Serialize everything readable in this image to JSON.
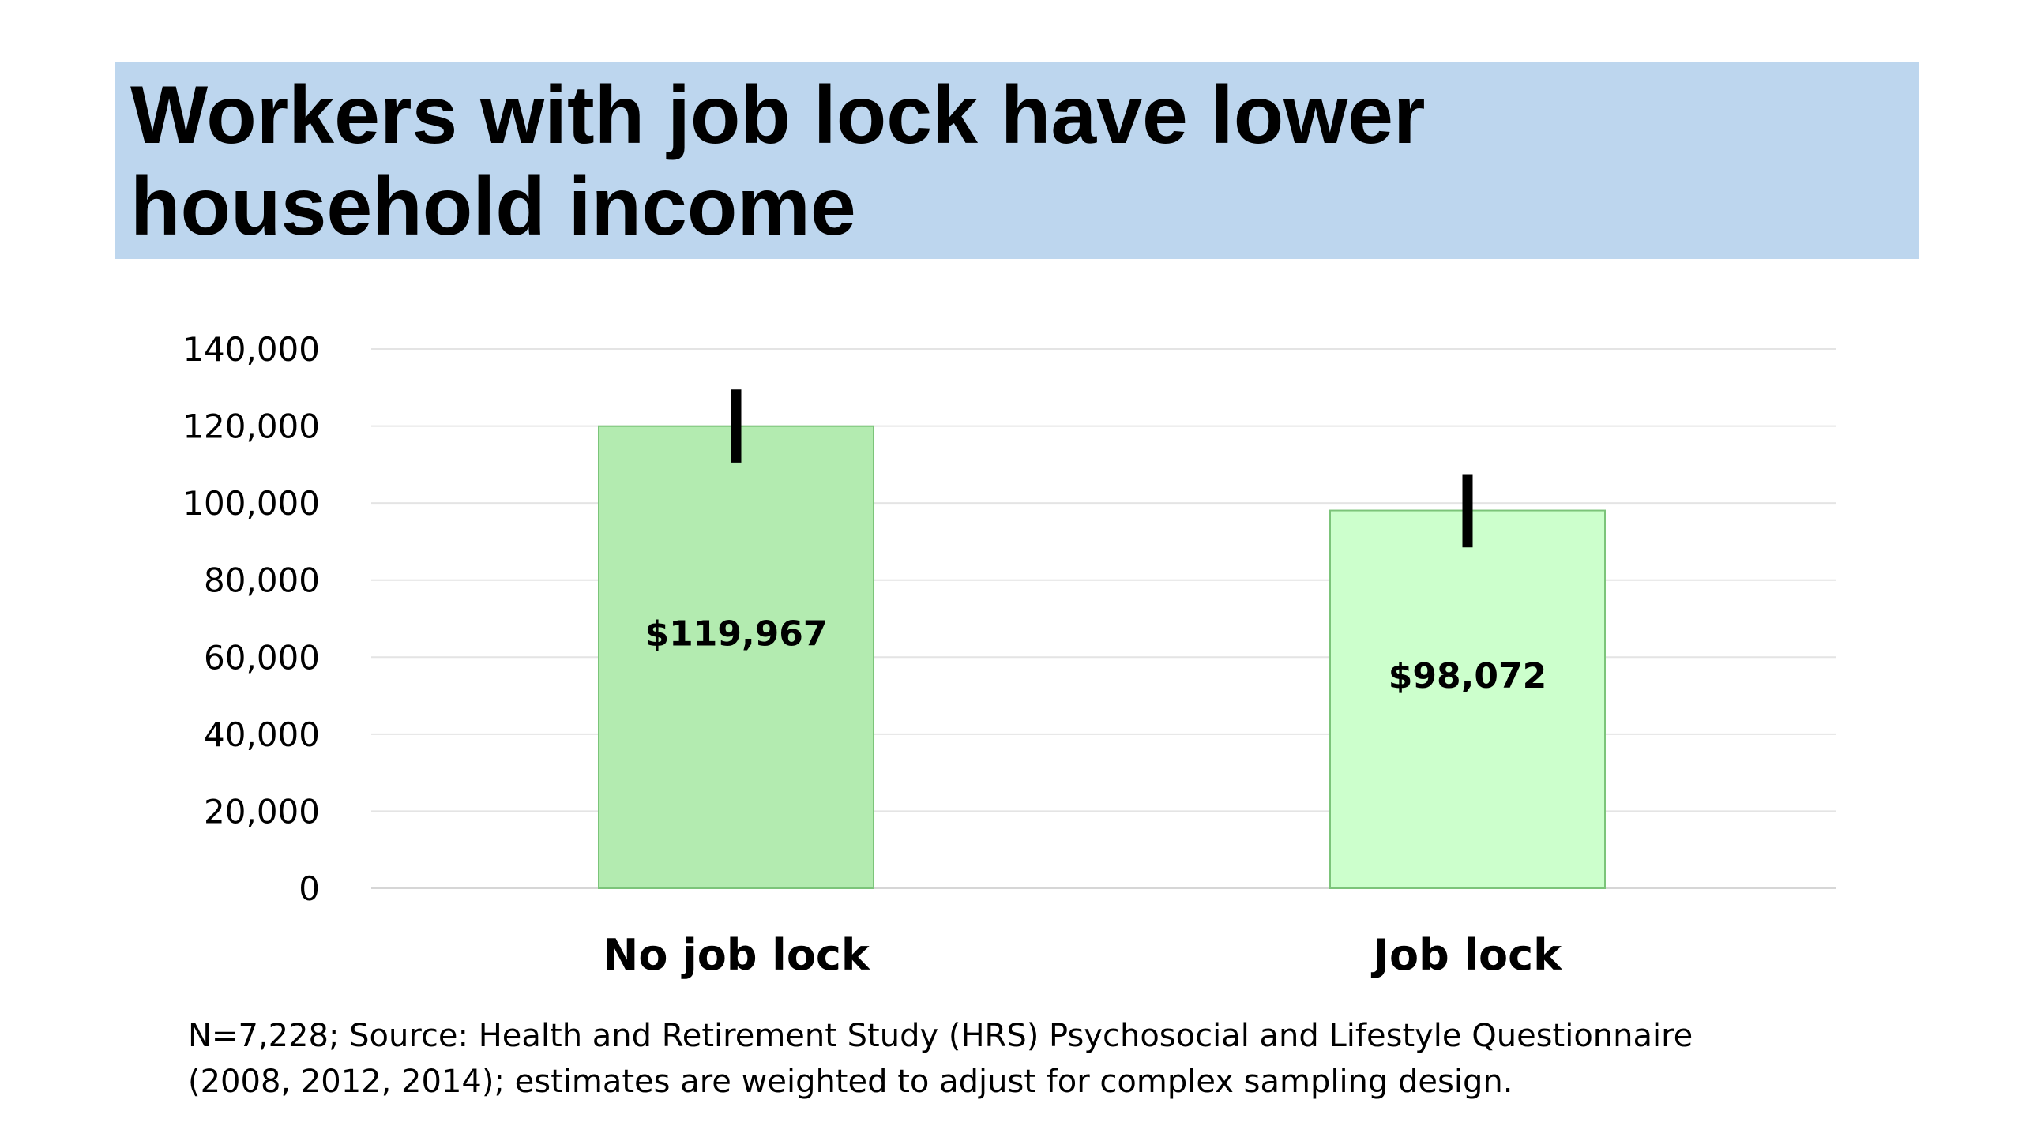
{
  "title": {
    "line1": "Workers with job lock have lower",
    "line2": "household income"
  },
  "chart_data": {
    "type": "bar",
    "categories": [
      "No job lock",
      "Job lock"
    ],
    "values": [
      119967,
      98072
    ],
    "data_labels": [
      "$119,967",
      "$98,072"
    ],
    "error_bars": [
      [
        110500,
        129500
      ],
      [
        88500,
        107500
      ]
    ],
    "ylim": [
      0,
      140000
    ],
    "yticks": [
      0,
      20000,
      40000,
      60000,
      80000,
      100000,
      120000,
      140000
    ],
    "ytick_labels": [
      "0",
      "20,000",
      "40,000",
      "60,000",
      "80,000",
      "100,000",
      "120,000",
      "140,000"
    ],
    "grid": true,
    "legend": "none",
    "xlabel": "",
    "ylabel": "",
    "colors": {
      "bars": [
        "#b3ebb0",
        "#ccffcc"
      ],
      "bar_border": "#7cc47a",
      "error_bar": "#000000",
      "grid": "#e4e4e4",
      "title_band": "#bdd6ee"
    }
  },
  "footnote": {
    "line1": "N=7,228; Source: Health and Retirement Study (HRS) Psychosocial and Lifestyle Questionnaire",
    "line2": "(2008, 2012, 2014); estimates are weighted to adjust for complex sampling design."
  }
}
